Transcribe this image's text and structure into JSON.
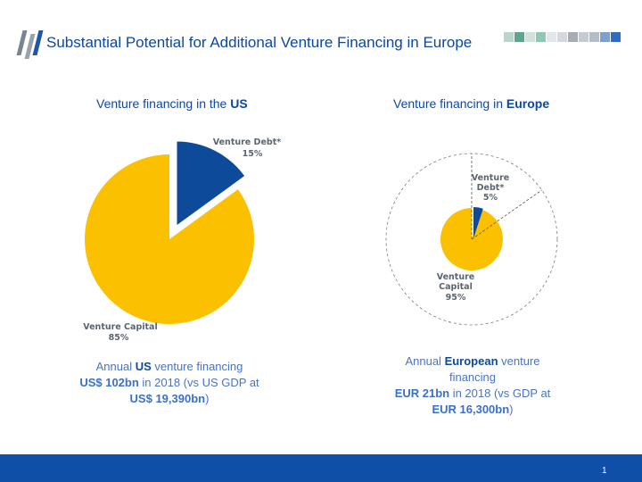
{
  "title": "Substantial Potential for Additional Venture Financing in Europe",
  "colors": {
    "brand_blue": "#0e4a9a",
    "capital_yellow": "#fbc100",
    "footer_blue": "#0f4fa8",
    "label_grey": "#5b6570",
    "summary_blue": "#4a74c0"
  },
  "header_squares": [
    "#b9d6cc",
    "#5fa58d",
    "#cfe2dc",
    "#8ec7b4",
    "#e3e6ea",
    "#d5d9de",
    "#a6acb3",
    "#c6cbd1",
    "#b3bcc7",
    "#7fa0cc",
    "#2d6cc0"
  ],
  "us": {
    "heading_prefix": "Venture financing in the ",
    "heading_bold": "US",
    "summary": {
      "prefix": "Annual ",
      "bold1": "US",
      "mid1": " venture financing",
      "bold2": "US$ 102bn",
      "mid2": " in 2018 (vs US GDP at",
      "bold3": "US$ 19,390bn",
      "suffix": ")"
    }
  },
  "europe": {
    "heading_prefix": "Venture financing in ",
    "heading_bold": "Europe",
    "summary": {
      "prefix": "Annual ",
      "bold1": "European",
      "mid1": " venture financing",
      "bold2": "EUR 21bn",
      "mid2": " in 2018 (vs GDP at",
      "bold3": "EUR 16,300bn",
      "suffix": ")"
    }
  },
  "page_number": "1",
  "chart_data": [
    {
      "type": "pie",
      "title": "Venture financing in the US",
      "slices": [
        {
          "label": "Venture Debt*",
          "value": 15,
          "value_label": "15%",
          "color": "#0e4a9a"
        },
        {
          "label": "Venture Capital",
          "value": 85,
          "value_label": "85%",
          "color": "#fbc100"
        }
      ],
      "exploded": "Venture Debt*"
    },
    {
      "type": "pie",
      "title": "Venture financing in Europe",
      "slices": [
        {
          "label": "Venture Debt*",
          "value": 5,
          "value_label": "5%",
          "color": "#0e4a9a"
        },
        {
          "label": "Venture Capital",
          "value": 95,
          "value_label": "95%",
          "color": "#fbc100"
        }
      ],
      "exploded": "Venture Debt*",
      "debt_label_lines": [
        "Venture",
        "Debt*"
      ],
      "capital_label_lines": [
        "Venture",
        "Capital"
      ]
    }
  ]
}
